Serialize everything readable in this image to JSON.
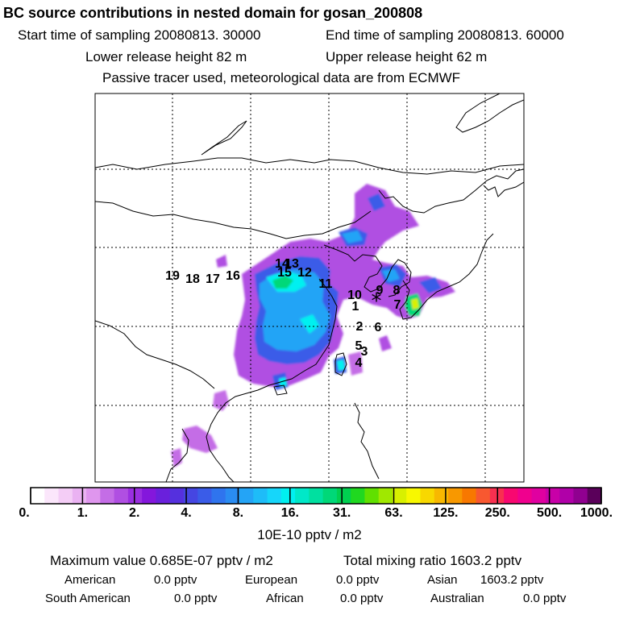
{
  "header": {
    "title": "BC  source contributions in nested domain for gosan_200808",
    "start_time": "Start time of sampling 20080813. 30000",
    "end_time": "End time of sampling 20080813. 60000",
    "lower_height": "Lower release height   82 m",
    "upper_height": "Upper release height   62 m",
    "tracer_note": "Passive tracer used, meteorological data are from ECMWF"
  },
  "chart_data": {
    "type": "heatmap",
    "title": "BC  source contributions in nested domain for gosan_200808",
    "receptor_marker": "*",
    "region_labels": [
      "1",
      "2",
      "3",
      "4",
      "5",
      "6",
      "7",
      "8",
      "9",
      "10",
      "11",
      "12",
      "13",
      "14",
      "15",
      "16",
      "17",
      "18",
      "19"
    ],
    "colorbar": {
      "tick_labels": [
        "0.",
        "1.",
        "2.",
        "4.",
        "8.",
        "16.",
        "31.",
        "63.",
        "125.",
        "250.",
        "500.",
        "1000."
      ],
      "tick_values": [
        0,
        1,
        2,
        4,
        8,
        16,
        31,
        63,
        125,
        250,
        500,
        1000
      ],
      "units": "10E-10 pptv / m2",
      "colors": [
        "#ffffff",
        "#fbe6fb",
        "#f4cdf6",
        "#eab2f2",
        "#df96ee",
        "#c46de6",
        "#b04fe2",
        "#9a2fe0",
        "#8417dc",
        "#6a20dc",
        "#5530de",
        "#4546e2",
        "#3a5ce8",
        "#2f74ee",
        "#2a8cf2",
        "#24a4f6",
        "#1ebcf8",
        "#16d6fa",
        "#00f0f0",
        "#00e8c8",
        "#00e0a0",
        "#00d878",
        "#00d050",
        "#20d820",
        "#60e000",
        "#a0e800",
        "#d8f000",
        "#f8f800",
        "#f8d800",
        "#f8b800",
        "#f89800",
        "#f87800",
        "#f85830",
        "#f83050",
        "#f80870",
        "#f0008e",
        "#e000a0",
        "#c800a8",
        "#b000a8",
        "#900090",
        "#5a005a"
      ]
    }
  },
  "stats": {
    "max_value": "Maximum value  0.685E-07 pptv / m2",
    "total_mixing": "Total mixing ratio     1603.2 pptv",
    "american": "American",
    "american_val": "0.0 pptv",
    "european": "European",
    "european_val": "0.0 pptv",
    "asian": "Asian",
    "asian_val": "1603.2 pptv",
    "south_american": "South American",
    "south_american_val": "0.0 pptv",
    "african": "African",
    "african_val": "0.0 pptv",
    "australian": "Australian",
    "australian_val": "0.0 pptv"
  },
  "colors": {
    "frame": "#000000",
    "grid": "#000000",
    "coast": "#000000"
  }
}
